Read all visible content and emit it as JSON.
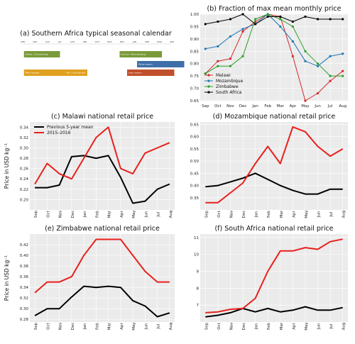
{
  "calendar": {
    "title": "(a) Southern Africa typical seasonal calendar",
    "months": [
      "APR",
      "MAY",
      "JUN",
      "JUL",
      "AUG",
      "SEP",
      "OCT",
      "NOV",
      "DEC",
      "JAN",
      "FEB",
      "MAR",
      "APR"
    ],
    "bars": [
      {
        "label": "Winter / 2nd planting",
        "start": 0.1,
        "end": 3.0,
        "row": 0,
        "color": "#7a9a3a"
      },
      {
        "label": "Land prep",
        "start": 7.8,
        "end": 8.6,
        "row": 0,
        "color": "#7a9a3a"
      },
      {
        "label": "Main planting",
        "start": 8.6,
        "end": 11.2,
        "row": 0,
        "color": "#7a9a3a"
      },
      {
        "label": "Rainy season",
        "start": 9.2,
        "end": 13.0,
        "row": 1,
        "color": "#3f6fa8"
      },
      {
        "label": "Main harvest",
        "start": 0.1,
        "end": 3.4,
        "row": 2,
        "color": "#e0a020"
      },
      {
        "label": "Wtr / 2nd harvest",
        "start": 3.4,
        "end": 5.2,
        "row": 2,
        "color": "#e0a020"
      },
      {
        "label": "Lean season",
        "start": 8.4,
        "end": 12.2,
        "row": 2,
        "color": "#c0502a"
      }
    ]
  },
  "chart_data": [
    {
      "panel": "b",
      "type": "line",
      "title": "(b) Fraction of max mean monthly price",
      "categories": [
        "Sep",
        "Oct",
        "Nov",
        "Dec",
        "Jan",
        "Feb",
        "Mar",
        "Apr",
        "May",
        "Jun",
        "Jul",
        "Aug"
      ],
      "ylim": [
        0.65,
        1.0
      ],
      "yticks": [
        0.65,
        0.7,
        0.75,
        0.8,
        0.85,
        0.9,
        0.95,
        1.0
      ],
      "ylabel": "",
      "markers": true,
      "grid": true,
      "legend_position": "lower-left",
      "series": [
        {
          "name": "Malawi",
          "color": "#d62728",
          "values": [
            0.76,
            0.81,
            0.82,
            0.93,
            0.97,
            1.0,
            0.99,
            0.83,
            0.65,
            0.68,
            0.73,
            0.77
          ]
        },
        {
          "name": "Mozambique",
          "color": "#1f77b4",
          "values": [
            0.86,
            0.87,
            0.91,
            0.94,
            0.96,
            1.0,
            0.95,
            0.89,
            0.81,
            0.79,
            0.83,
            0.84
          ]
        },
        {
          "name": "Zimbabwe",
          "color": "#2ca02c",
          "values": [
            0.76,
            0.79,
            0.79,
            0.83,
            0.98,
            1.0,
            0.98,
            0.95,
            0.85,
            0.8,
            0.75,
            0.75
          ]
        },
        {
          "name": "South Africa",
          "color": "#000000",
          "values": [
            0.96,
            0.97,
            0.98,
            1.0,
            0.96,
            0.99,
            0.99,
            0.97,
            0.99,
            0.98,
            0.98,
            0.98
          ]
        }
      ]
    },
    {
      "panel": "c",
      "type": "line",
      "title": "(c) Malawi national retail price",
      "categories": [
        "Sep",
        "Oct",
        "Nov",
        "Dec",
        "Jan",
        "Feb",
        "Mar",
        "Apr",
        "May",
        "Jun",
        "Jul",
        "Aug"
      ],
      "ylim": [
        0.18,
        0.35
      ],
      "yticks": [
        0.2,
        0.22,
        0.24,
        0.26,
        0.28,
        0.3,
        0.32,
        0.34
      ],
      "ylabel": "Price in USD kg⁻¹",
      "grid": true,
      "legend_position": "top-left",
      "series": [
        {
          "name": "Previous 5-year mean",
          "color": "#000000",
          "values": [
            0.223,
            0.223,
            0.228,
            0.283,
            0.285,
            0.28,
            0.285,
            0.243,
            0.193,
            0.197,
            0.22,
            0.23
          ]
        },
        {
          "name": "2015–2016",
          "color": "#e8201c",
          "values": [
            0.23,
            0.27,
            0.25,
            0.24,
            0.28,
            0.32,
            0.34,
            0.26,
            0.25,
            0.29,
            0.3,
            0.31
          ]
        }
      ]
    },
    {
      "panel": "d",
      "type": "line",
      "title": "(d) Mozambique national retail price",
      "categories": [
        "Sep",
        "Oct",
        "Nov",
        "Dec",
        "Jan",
        "Feb",
        "Mar",
        "Apr",
        "May",
        "Jun",
        "Jul",
        "Aug"
      ],
      "ylim": [
        0.3,
        0.66
      ],
      "yticks": [
        0.35,
        0.4,
        0.45,
        0.5,
        0.55,
        0.6,
        0.65
      ],
      "ylabel": "",
      "grid": true,
      "series": [
        {
          "name": "Previous 5-year mean",
          "color": "#000000",
          "values": [
            0.395,
            0.4,
            0.415,
            0.43,
            0.45,
            0.425,
            0.4,
            0.38,
            0.365,
            0.365,
            0.385,
            0.385
          ]
        },
        {
          "name": "2015–2016",
          "color": "#e8201c",
          "values": [
            0.33,
            0.33,
            0.37,
            0.41,
            0.49,
            0.56,
            0.49,
            0.64,
            0.62,
            0.56,
            0.52,
            0.55
          ]
        }
      ]
    },
    {
      "panel": "e",
      "type": "line",
      "title": "(e) Zimbabwe national retail price",
      "categories": [
        "Sep",
        "Oct",
        "Nov",
        "Dec",
        "Jan",
        "Feb",
        "Mar",
        "Apr",
        "May",
        "Jun",
        "Jul",
        "Aug"
      ],
      "ylim": [
        0.275,
        0.44
      ],
      "yticks": [
        0.28,
        0.3,
        0.32,
        0.34,
        0.36,
        0.38,
        0.4,
        0.42
      ],
      "ylabel": "Price in USD kg⁻¹",
      "grid": true,
      "series": [
        {
          "name": "Previous 5-year mean",
          "color": "#000000",
          "values": [
            0.287,
            0.3,
            0.3,
            0.322,
            0.342,
            0.34,
            0.342,
            0.34,
            0.315,
            0.305,
            0.285,
            0.292
          ]
        },
        {
          "name": "2015–2016",
          "color": "#e8201c",
          "values": [
            0.33,
            0.35,
            0.35,
            0.36,
            0.4,
            0.43,
            0.43,
            0.43,
            0.4,
            0.37,
            0.35,
            0.35
          ]
        }
      ]
    },
    {
      "panel": "f",
      "type": "line",
      "title": "(f) South Africa national retail price",
      "categories": [
        "Sep",
        "Oct",
        "Nov",
        "Dec",
        "Jan",
        "Feb",
        "Mar",
        "Apr",
        "May",
        "Jun",
        "Jul",
        "Aug"
      ],
      "ylim": [
        6.0,
        11.2
      ],
      "yticks": [
        7,
        8,
        9,
        10,
        11
      ],
      "ylabel": "",
      "grid": true,
      "series": [
        {
          "name": "Previous 5-year mean",
          "color": "#000000",
          "values": [
            6.3,
            6.4,
            6.55,
            6.8,
            6.6,
            6.8,
            6.6,
            6.7,
            6.9,
            6.7,
            6.7,
            6.85
          ]
        },
        {
          "name": "2015–2016",
          "color": "#e8201c",
          "values": [
            6.55,
            6.6,
            6.75,
            6.8,
            7.4,
            9.0,
            10.2,
            10.2,
            10.4,
            10.3,
            10.75,
            10.9
          ]
        }
      ]
    }
  ]
}
